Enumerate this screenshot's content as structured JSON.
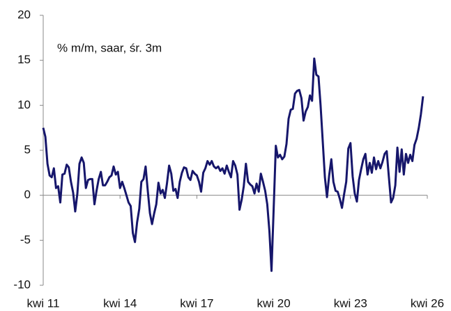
{
  "chart_data": {
    "type": "line",
    "annotation": "% m/m, saar, śr. 3m",
    "categories": [
      "kwi 11",
      null,
      null,
      null,
      null,
      null,
      null,
      null,
      null,
      null,
      null,
      null,
      null,
      null,
      null,
      null,
      null,
      null,
      null,
      null,
      null,
      null,
      null,
      null,
      null,
      null,
      null,
      null,
      null,
      null,
      null,
      null,
      null,
      null,
      null,
      null,
      "kwi 14",
      null,
      null,
      null,
      null,
      null,
      null,
      null,
      null,
      null,
      null,
      null,
      null,
      null,
      null,
      null,
      null,
      null,
      null,
      null,
      null,
      null,
      null,
      null,
      null,
      null,
      null,
      null,
      null,
      null,
      null,
      null,
      null,
      null,
      null,
      null,
      "kwi 17",
      null,
      null,
      null,
      null,
      null,
      null,
      null,
      null,
      null,
      null,
      null,
      null,
      null,
      null,
      null,
      null,
      null,
      null,
      null,
      null,
      null,
      null,
      null,
      null,
      null,
      null,
      null,
      null,
      null,
      null,
      null,
      null,
      null,
      null,
      null,
      "kwi 20",
      null,
      null,
      null,
      null,
      null,
      null,
      null,
      null,
      null,
      null,
      null,
      null,
      null,
      null,
      null,
      null,
      null,
      null,
      null,
      null,
      null,
      null,
      null,
      null,
      null,
      null,
      null,
      null,
      null,
      null,
      null,
      null,
      null,
      null,
      null,
      "kwi 23",
      null,
      null,
      null,
      null,
      null,
      null,
      null,
      null,
      null,
      null,
      null,
      null,
      null,
      null,
      null,
      null,
      null,
      null,
      null,
      null,
      null,
      null,
      null,
      null,
      null,
      null,
      null,
      null,
      null,
      null,
      null,
      null,
      null,
      null,
      null,
      "kwi 26"
    ],
    "series": [
      {
        "name": null,
        "color": "#16166b",
        "values": [
          7.5,
          6.5,
          3.5,
          2.2,
          2.0,
          3.0,
          0.8,
          1.0,
          -0.8,
          2.3,
          2.4,
          3.4,
          3.1,
          1.5,
          0.3,
          -1.8,
          0.2,
          3.5,
          4.2,
          3.6,
          0.8,
          1.7,
          1.8,
          1.8,
          -1.0,
          0.5,
          1.8,
          2.6,
          1.1,
          1.1,
          1.5,
          2.0,
          2.2,
          3.2,
          2.3,
          2.6,
          0.8,
          1.5,
          0.8,
          0,
          -0.8,
          -1.2,
          -4.2,
          -5.2,
          -3.0,
          -1.5,
          1.5,
          1.8,
          3.2,
          0.5,
          -2.0,
          -3.2,
          -2.0,
          -1.0,
          1.4,
          0.2,
          0.6,
          -0.3,
          1.3,
          3.3,
          2.4,
          0.5,
          0.7,
          -0.3,
          1.5,
          2.5,
          3.1,
          3.0,
          2.0,
          1.7,
          2.7,
          2.4,
          2.2,
          1.5,
          0.4,
          2.5,
          3.0,
          3.8,
          3.4,
          3.8,
          3.2,
          3.0,
          3.2,
          2.7,
          3.0,
          2.4,
          3.3,
          2.6,
          2.0,
          3.8,
          3.3,
          2.3,
          -1.6,
          -0.5,
          1.0,
          3.5,
          1.5,
          1.2,
          1.0,
          0.2,
          1.3,
          0.4,
          2.4,
          1.5,
          0.5,
          -1.0,
          -4.0,
          -8.4,
          -1.5,
          5.5,
          4.2,
          4.5,
          4.0,
          4.3,
          5.7,
          8.5,
          9.5,
          9.6,
          11.3,
          11.6,
          11.7,
          10.8,
          8.3,
          9.3,
          9.8,
          11.1,
          10.5,
          15.2,
          13.4,
          13.2,
          10.0,
          6.0,
          2.0,
          -0.2,
          2.2,
          4.0,
          1.5,
          0.5,
          0.4,
          -0.4,
          -1.4,
          0.1,
          1.5,
          5.2,
          5.8,
          2.1,
          0.2,
          -0.7,
          1.7,
          2.9,
          4.0,
          4.6,
          2.3,
          3.6,
          2.5,
          4.2,
          2.9,
          3.8,
          3.0,
          3.7,
          4.6,
          4.9,
          2.0,
          -0.8,
          -0.3,
          1.1,
          5.3,
          2.6,
          5.1,
          2.3,
          4.6,
          3.6,
          4.5,
          3.8,
          5.6,
          6.3,
          7.5,
          9.0,
          11.0,
          null,
          null
        ]
      }
    ],
    "ylim": [
      -10,
      20
    ],
    "yticks": [
      20,
      15,
      10,
      5,
      0,
      -5,
      -10
    ]
  }
}
